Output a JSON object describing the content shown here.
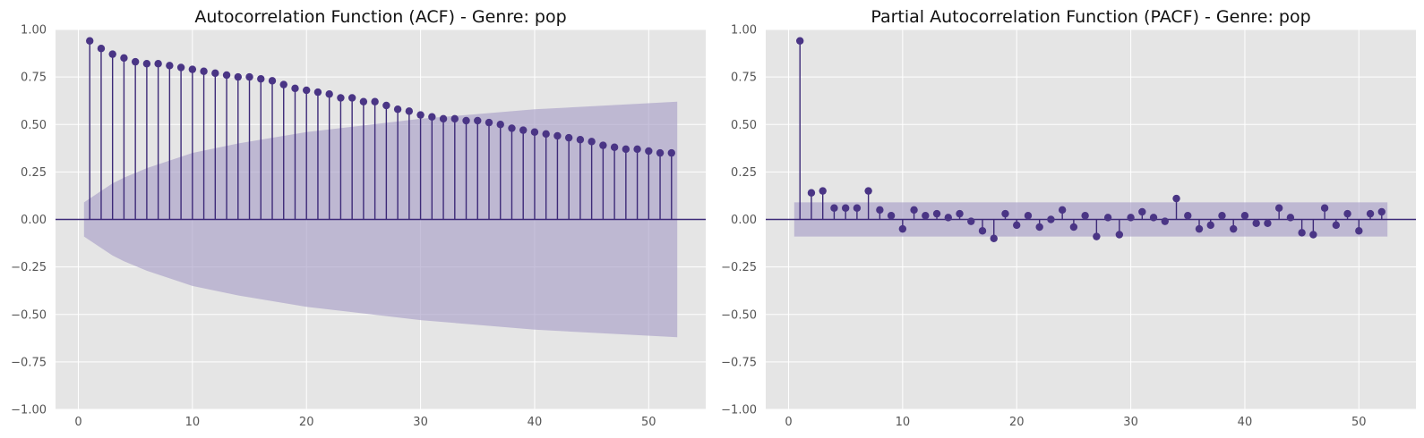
{
  "colors": {
    "plot_background": "#e5e5e5",
    "grid": "#ffffff",
    "series": "#4a3585",
    "confidence_band": "#a99fc8"
  },
  "chart_data": [
    {
      "type": "stem",
      "title": "Autocorrelation Function (ACF) - Genre: pop",
      "xlabel": "",
      "ylabel": "",
      "xlim": [
        -2,
        55
      ],
      "ylim": [
        -1,
        1
      ],
      "x_ticks": [
        "0",
        "10",
        "20",
        "30",
        "40",
        "50"
      ],
      "y_ticks": [
        "−1.00",
        "−0.75",
        "−0.50",
        "−0.25",
        "0.00",
        "0.25",
        "0.50",
        "0.75",
        "1.00"
      ],
      "grid": true,
      "lags": [
        1,
        2,
        3,
        4,
        5,
        6,
        7,
        8,
        9,
        10,
        11,
        12,
        13,
        14,
        15,
        16,
        17,
        18,
        19,
        20,
        21,
        22,
        23,
        24,
        25,
        26,
        27,
        28,
        29,
        30,
        31,
        32,
        33,
        34,
        35,
        36,
        37,
        38,
        39,
        40,
        41,
        42,
        43,
        44,
        45,
        46,
        47,
        48,
        49,
        50,
        51,
        52
      ],
      "values": [
        0.94,
        0.9,
        0.87,
        0.85,
        0.83,
        0.82,
        0.82,
        0.81,
        0.8,
        0.79,
        0.78,
        0.77,
        0.76,
        0.75,
        0.75,
        0.74,
        0.73,
        0.71,
        0.69,
        0.68,
        0.67,
        0.66,
        0.64,
        0.64,
        0.62,
        0.62,
        0.6,
        0.58,
        0.57,
        0.55,
        0.54,
        0.53,
        0.53,
        0.52,
        0.52,
        0.51,
        0.5,
        0.48,
        0.47,
        0.46,
        0.45,
        0.44,
        0.43,
        0.42,
        0.41,
        0.39,
        0.38,
        0.37,
        0.37,
        0.36,
        0.35,
        0.35
      ],
      "confidence_band": {
        "lags": [
          0.5,
          2,
          3,
          4,
          6,
          8,
          10,
          14,
          20,
          30,
          40,
          52.5
        ],
        "upper": [
          0.09,
          0.15,
          0.19,
          0.22,
          0.27,
          0.31,
          0.35,
          0.4,
          0.46,
          0.53,
          0.58,
          0.62
        ]
      }
    },
    {
      "type": "stem",
      "title": "Partial Autocorrelation Function (PACF) - Genre: pop",
      "xlabel": "",
      "ylabel": "",
      "xlim": [
        -2,
        55
      ],
      "ylim": [
        -1,
        1
      ],
      "x_ticks": [
        "0",
        "10",
        "20",
        "30",
        "40",
        "50"
      ],
      "y_ticks": [
        "−1.00",
        "−0.75",
        "−0.50",
        "−0.25",
        "0.00",
        "0.25",
        "0.50",
        "0.75",
        "1.00"
      ],
      "grid": true,
      "lags": [
        1,
        2,
        3,
        4,
        5,
        6,
        7,
        8,
        9,
        10,
        11,
        12,
        13,
        14,
        15,
        16,
        17,
        18,
        19,
        20,
        21,
        22,
        23,
        24,
        25,
        26,
        27,
        28,
        29,
        30,
        31,
        32,
        33,
        34,
        35,
        36,
        37,
        38,
        39,
        40,
        41,
        42,
        43,
        44,
        45,
        46,
        47,
        48,
        49,
        50,
        51,
        52
      ],
      "values": [
        0.94,
        0.14,
        0.15,
        0.06,
        0.06,
        0.06,
        0.15,
        0.05,
        0.02,
        -0.05,
        0.05,
        0.02,
        0.03,
        0.01,
        0.03,
        -0.01,
        -0.06,
        -0.1,
        0.03,
        -0.03,
        0.02,
        -0.04,
        0.0,
        0.05,
        -0.04,
        0.02,
        -0.09,
        0.01,
        -0.08,
        0.01,
        0.04,
        0.01,
        -0.01,
        0.11,
        0.02,
        -0.05,
        -0.03,
        0.02,
        -0.05,
        0.02,
        -0.02,
        -0.02,
        0.06,
        0.01,
        -0.07,
        -0.08,
        0.06,
        -0.03,
        0.03,
        -0.06,
        0.03,
        0.04
      ],
      "confidence_band": {
        "lags": [
          0.5,
          52.5
        ],
        "upper": [
          0.09,
          0.09
        ]
      }
    }
  ]
}
